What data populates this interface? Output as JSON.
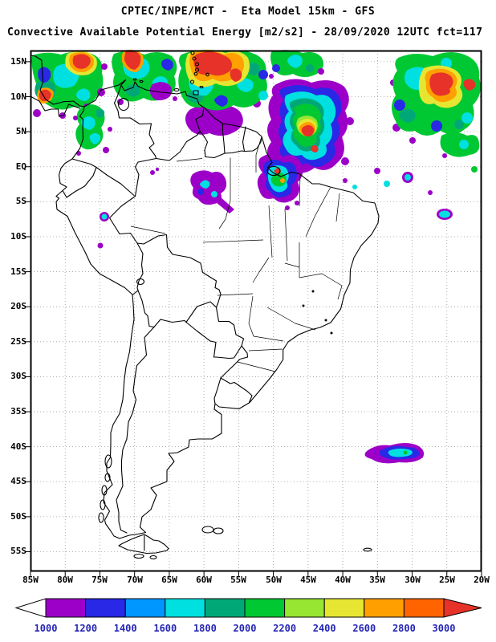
{
  "header": {
    "line1": "CPTEC/INPE/MCT -  Eta Model 15km - GFS",
    "line2": "Convective Available Potential Energy [m2/s2] - 28/09/2020 12UTC fct=117"
  },
  "axes": {
    "lat_labels": [
      "15N",
      "10N",
      "5N",
      "EQ",
      "5S",
      "10S",
      "15S",
      "20S",
      "25S",
      "30S",
      "35S",
      "40S",
      "45S",
      "50S",
      "55S"
    ],
    "lon_labels": [
      "85W",
      "80W",
      "75W",
      "70W",
      "65W",
      "60W",
      "55W",
      "50W",
      "45W",
      "40W",
      "35W",
      "30W",
      "25W",
      "20W"
    ]
  },
  "colorbar": {
    "unit_values": [
      "1000",
      "1200",
      "1400",
      "1600",
      "1800",
      "2000",
      "2200",
      "2400",
      "2600",
      "2800",
      "3000"
    ],
    "segment_colors": [
      "#9C00C8",
      "#2828E6",
      "#0096FF",
      "#00E0E0",
      "#00A878",
      "#00C832",
      "#96E632",
      "#E6E632",
      "#FFA000",
      "#FF6400"
    ],
    "below_min_color": "#FFFFFF",
    "above_max_color": "#E63228",
    "label_color": "#2424B4"
  }
}
